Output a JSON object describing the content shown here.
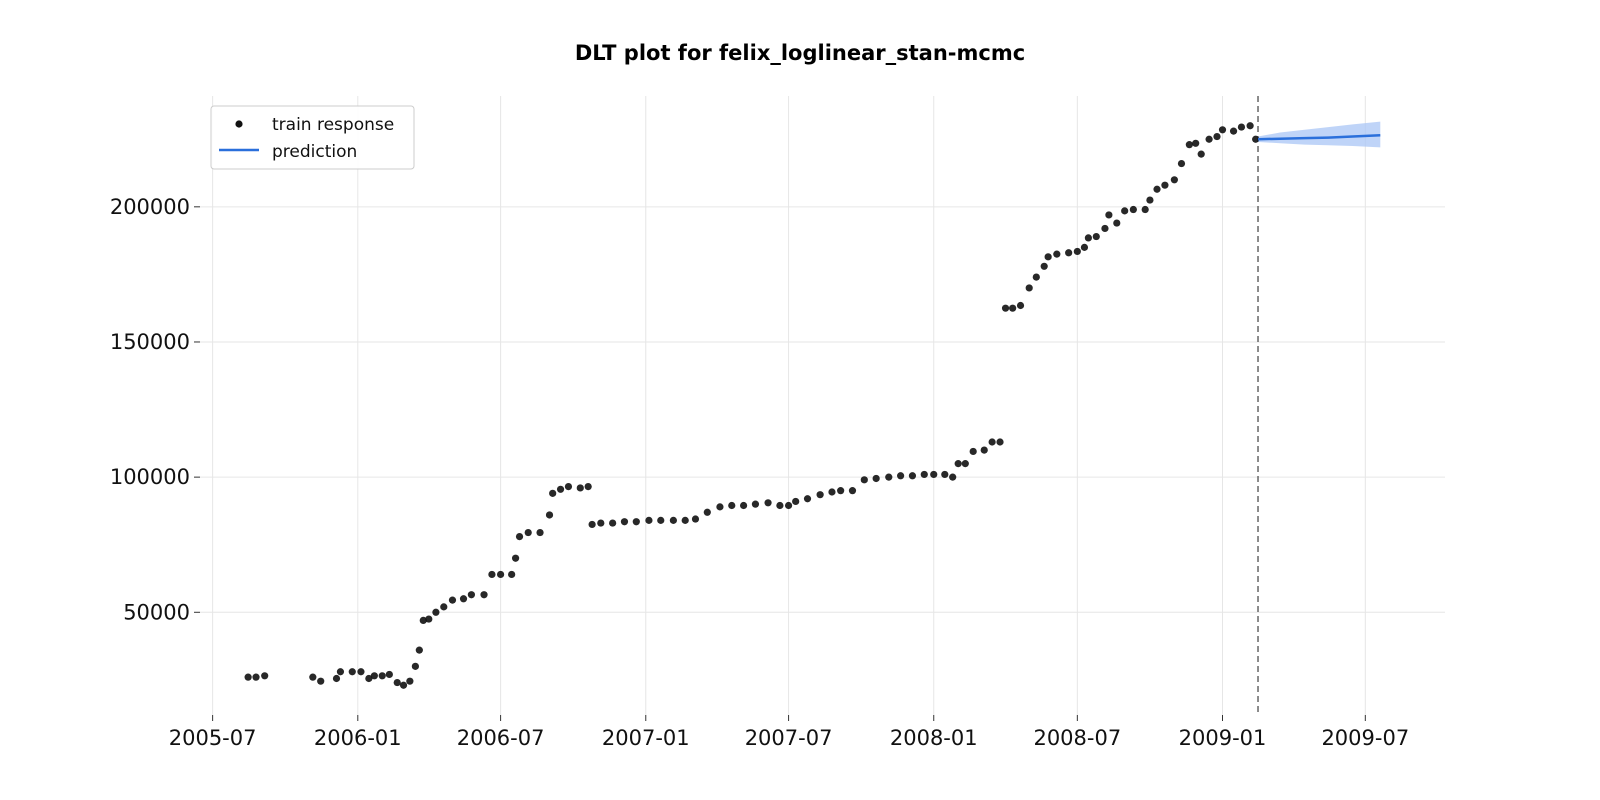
{
  "chart_data": {
    "type": "scatter",
    "title": "DLT plot for felix_loglinear_stan-mcmc",
    "xlabel": "",
    "ylabel": "",
    "x_ticks": [
      "2005-07",
      "2006-01",
      "2006-07",
      "2007-01",
      "2007-07",
      "2008-01",
      "2008-07",
      "2009-01",
      "2009-07"
    ],
    "y_ticks": [
      50000,
      100000,
      150000,
      200000
    ],
    "xlim": [
      "2005-06-15",
      "2009-10-10"
    ],
    "ylim": [
      12000,
      241000
    ],
    "grid": true,
    "legend_position": "top-left",
    "forecast_start": "2009-02-15",
    "colors": {
      "train": "#111111",
      "prediction": "#2a6fdb",
      "band": "#aac6f5",
      "divider": "#666666"
    },
    "series": [
      {
        "name": "train response",
        "type": "scatter",
        "points": [
          [
            "2005-08-15",
            26000
          ],
          [
            "2005-08-25",
            26000
          ],
          [
            "2005-09-05",
            26500
          ],
          [
            "2005-11-05",
            26000
          ],
          [
            "2005-11-15",
            24500
          ],
          [
            "2005-12-05",
            25500
          ],
          [
            "2005-12-10",
            28000
          ],
          [
            "2005-12-25",
            28000
          ],
          [
            "2006-01-05",
            28000
          ],
          [
            "2006-01-15",
            25500
          ],
          [
            "2006-01-22",
            26500
          ],
          [
            "2006-02-01",
            26500
          ],
          [
            "2006-02-10",
            27000
          ],
          [
            "2006-02-20",
            24000
          ],
          [
            "2006-02-28",
            23000
          ],
          [
            "2006-03-08",
            24500
          ],
          [
            "2006-03-15",
            30000
          ],
          [
            "2006-03-20",
            36000
          ],
          [
            "2006-03-25",
            47000
          ],
          [
            "2006-04-01",
            47500
          ],
          [
            "2006-04-10",
            50000
          ],
          [
            "2006-04-20",
            52000
          ],
          [
            "2006-05-01",
            54500
          ],
          [
            "2006-05-15",
            55000
          ],
          [
            "2006-05-25",
            56500
          ],
          [
            "2006-06-10",
            56500
          ],
          [
            "2006-06-20",
            64000
          ],
          [
            "2006-07-01",
            64000
          ],
          [
            "2006-07-15",
            64000
          ],
          [
            "2006-07-20",
            70000
          ],
          [
            "2006-07-25",
            78000
          ],
          [
            "2006-08-05",
            79500
          ],
          [
            "2006-08-20",
            79500
          ],
          [
            "2006-09-01",
            86000
          ],
          [
            "2006-09-05",
            94000
          ],
          [
            "2006-09-15",
            95500
          ],
          [
            "2006-09-25",
            96500
          ],
          [
            "2006-10-10",
            96000
          ],
          [
            "2006-10-20",
            96500
          ],
          [
            "2006-10-25",
            82500
          ],
          [
            "2006-11-05",
            83000
          ],
          [
            "2006-11-20",
            83000
          ],
          [
            "2006-12-05",
            83500
          ],
          [
            "2006-12-20",
            83500
          ],
          [
            "2007-01-05",
            84000
          ],
          [
            "2007-01-20",
            84000
          ],
          [
            "2007-02-05",
            84000
          ],
          [
            "2007-02-20",
            84000
          ],
          [
            "2007-03-05",
            84500
          ],
          [
            "2007-03-20",
            87000
          ],
          [
            "2007-04-05",
            89000
          ],
          [
            "2007-04-20",
            89500
          ],
          [
            "2007-05-05",
            89500
          ],
          [
            "2007-05-20",
            90000
          ],
          [
            "2007-06-05",
            90500
          ],
          [
            "2007-06-20",
            89500
          ],
          [
            "2007-07-01",
            89500
          ],
          [
            "2007-07-10",
            91000
          ],
          [
            "2007-07-25",
            92000
          ],
          [
            "2007-08-10",
            93500
          ],
          [
            "2007-08-25",
            94500
          ],
          [
            "2007-09-05",
            95000
          ],
          [
            "2007-09-20",
            95000
          ],
          [
            "2007-10-05",
            99000
          ],
          [
            "2007-10-20",
            99500
          ],
          [
            "2007-11-05",
            100000
          ],
          [
            "2007-11-20",
            100500
          ],
          [
            "2007-12-05",
            100500
          ],
          [
            "2007-12-20",
            101000
          ],
          [
            "2008-01-01",
            101000
          ],
          [
            "2008-01-15",
            101000
          ],
          [
            "2008-01-25",
            100000
          ],
          [
            "2008-02-01",
            105000
          ],
          [
            "2008-02-10",
            105000
          ],
          [
            "2008-02-20",
            109500
          ],
          [
            "2008-03-05",
            110000
          ],
          [
            "2008-03-15",
            113000
          ],
          [
            "2008-03-25",
            113000
          ],
          [
            "2008-04-01",
            162500
          ],
          [
            "2008-04-10",
            162500
          ],
          [
            "2008-04-20",
            163500
          ],
          [
            "2008-05-01",
            170000
          ],
          [
            "2008-05-10",
            174000
          ],
          [
            "2008-05-20",
            178000
          ],
          [
            "2008-05-25",
            181500
          ],
          [
            "2008-06-05",
            182500
          ],
          [
            "2008-06-20",
            183000
          ],
          [
            "2008-07-01",
            183500
          ],
          [
            "2008-07-10",
            185000
          ],
          [
            "2008-07-15",
            188500
          ],
          [
            "2008-07-25",
            189000
          ],
          [
            "2008-08-05",
            192000
          ],
          [
            "2008-08-10",
            197000
          ],
          [
            "2008-08-20",
            194000
          ],
          [
            "2008-08-30",
            198500
          ],
          [
            "2008-09-10",
            199000
          ],
          [
            "2008-09-25",
            199000
          ],
          [
            "2008-10-01",
            202500
          ],
          [
            "2008-10-10",
            206500
          ],
          [
            "2008-10-20",
            208000
          ],
          [
            "2008-11-01",
            210000
          ],
          [
            "2008-11-10",
            216000
          ],
          [
            "2008-11-20",
            223000
          ],
          [
            "2008-11-28",
            223500
          ],
          [
            "2008-12-05",
            219500
          ],
          [
            "2008-12-15",
            225000
          ],
          [
            "2008-12-25",
            226000
          ],
          [
            "2009-01-01",
            228500
          ],
          [
            "2009-01-15",
            228000
          ],
          [
            "2009-01-25",
            229500
          ],
          [
            "2009-02-05",
            230000
          ],
          [
            "2009-02-12",
            225000
          ]
        ]
      },
      {
        "name": "prediction",
        "type": "line",
        "points": [
          [
            "2009-02-15",
            225000
          ],
          [
            "2009-03-15",
            225200
          ],
          [
            "2009-04-15",
            225400
          ],
          [
            "2009-05-15",
            225600
          ],
          [
            "2009-06-15",
            226000
          ],
          [
            "2009-07-20",
            226500
          ]
        ],
        "band": [
          [
            "2009-02-15",
            224000,
            226000
          ],
          [
            "2009-03-15",
            223500,
            227500
          ],
          [
            "2009-04-15",
            223000,
            228500
          ],
          [
            "2009-05-15",
            222800,
            229500
          ],
          [
            "2009-06-15",
            222500,
            230500
          ],
          [
            "2009-07-20",
            222000,
            231500
          ]
        ]
      }
    ]
  }
}
